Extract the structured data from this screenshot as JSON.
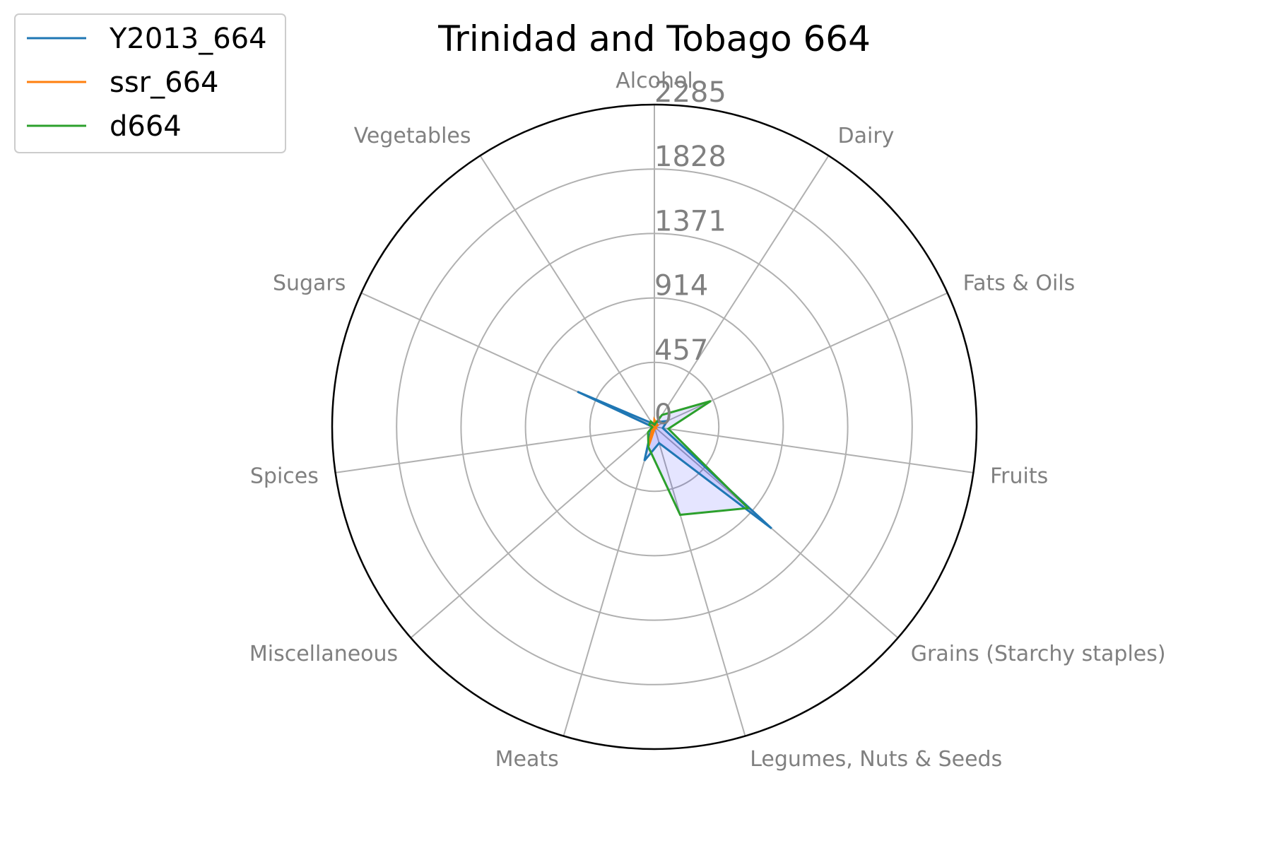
{
  "chart_data": {
    "type": "radar",
    "title": "Trinidad and Tobago 664",
    "categories": [
      "Alcohol",
      "Dairy",
      "Fats & Oils",
      "Fruits",
      "Grains (Starchy staples)",
      "Legumes, Nuts & Seeds",
      "Meats",
      "Miscellaneous",
      "Spices",
      "Sugars",
      "Vegetables"
    ],
    "rticks": [
      "0",
      "457",
      "914",
      "1371",
      "1828",
      "2285"
    ],
    "rlim": [
      0,
      2285
    ],
    "grid": true,
    "legend_position": "upper-left",
    "series": [
      {
        "name": "Y2013_664",
        "color": "#1f77b4",
        "values": [
          5,
          40,
          100,
          60,
          1100,
          120,
          250,
          30,
          10,
          600,
          30
        ]
      },
      {
        "name": "ssr_664",
        "color": "#ff7f0e",
        "values": [
          50,
          30,
          25,
          5,
          15,
          10,
          140,
          20,
          10,
          30,
          5
        ]
      },
      {
        "name": "d664",
        "color": "#2ca02c",
        "values": [
          15,
          100,
          440,
          100,
          880,
          650,
          150,
          60,
          15,
          40,
          45
        ]
      }
    ],
    "fill_color": "#0000ff"
  }
}
